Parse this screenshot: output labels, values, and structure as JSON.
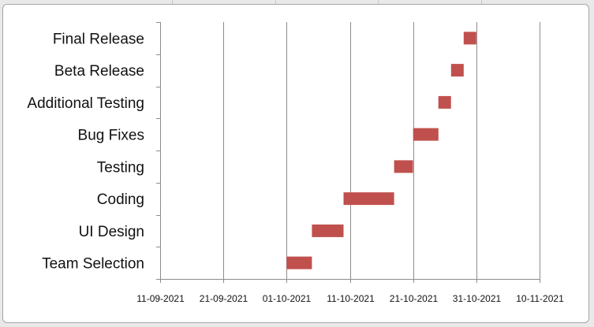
{
  "chart_data": {
    "type": "bar",
    "orientation": "horizontal",
    "stacked": true,
    "title": "",
    "xlabel": "",
    "ylabel": "",
    "categories": [
      "Team Selection",
      "UI Design",
      "Coding",
      "Testing",
      "Bug Fixes",
      "Additional Testing",
      "Beta Release",
      "Final Release"
    ],
    "x_axis_type": "date",
    "x_tick_labels": [
      "11-09-2021",
      "21-09-2021",
      "01-10-2021",
      "11-10-2021",
      "21-10-2021",
      "31-10-2021",
      "10-11-2021"
    ],
    "xlim": [
      "2021-09-11",
      "2021-11-10"
    ],
    "x_tick_step_days": 10,
    "grid": "vertical major gridlines",
    "legend": "none",
    "series": [
      {
        "role": "start (invisible offset)",
        "values": [
          "2021-10-01",
          "2021-10-05",
          "2021-10-10",
          "2021-10-18",
          "2021-10-21",
          "2021-10-25",
          "2021-10-27",
          "2021-10-29"
        ]
      },
      {
        "role": "duration (days)",
        "color": "#c0504d",
        "values": [
          4,
          5,
          8,
          3,
          4,
          2,
          2,
          2
        ]
      }
    ]
  }
}
